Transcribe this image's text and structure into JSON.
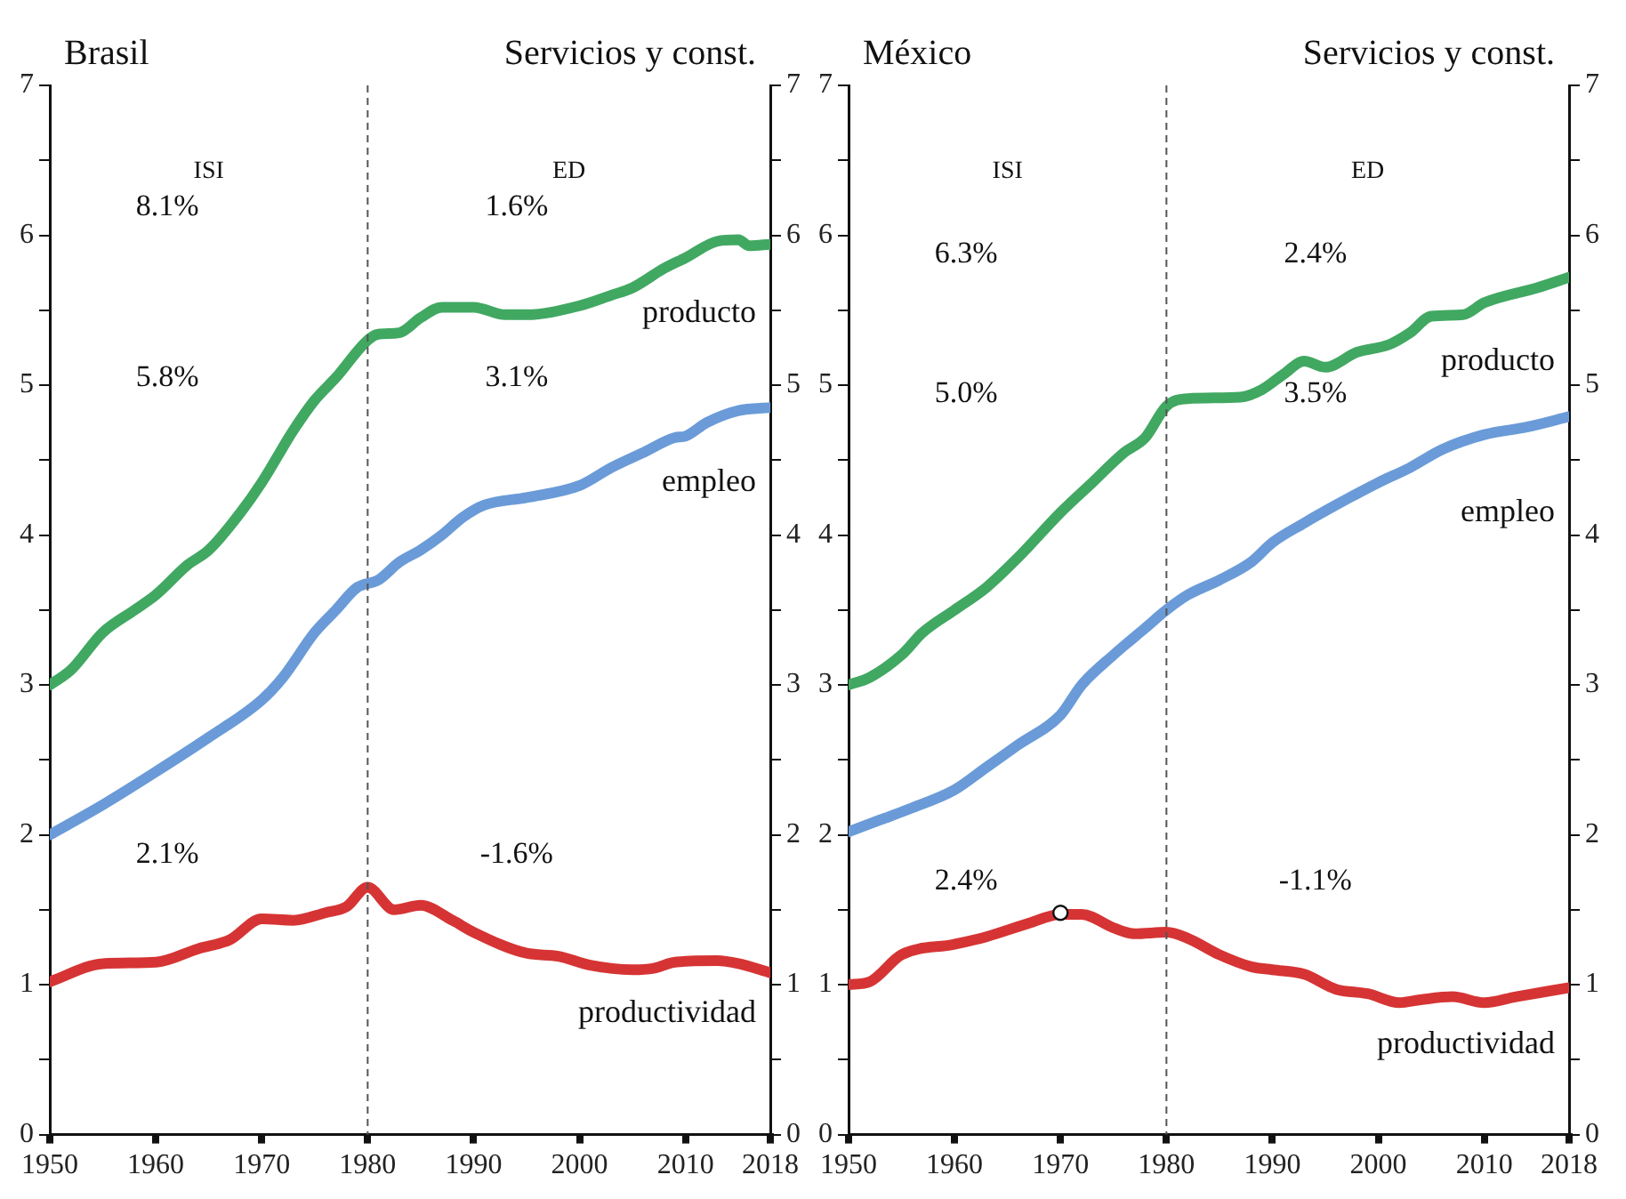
{
  "chart_data": [
    {
      "type": "line",
      "title": "Brasil",
      "subtitle": "Servicios y const.",
      "xlim": [
        1950,
        2018
      ],
      "xticks": [
        1950,
        1960,
        1970,
        1980,
        1990,
        2000,
        2010,
        2018
      ],
      "ylim": [
        0,
        7
      ],
      "yticks": [
        0,
        {
          "value": 0.5,
          "label": null
        },
        1,
        {
          "value": 1.5,
          "label": null
        },
        2,
        {
          "value": 2.5,
          "label": null
        },
        3,
        {
          "value": 3.5,
          "label": null
        },
        4,
        {
          "value": 4.5,
          "label": null
        },
        5,
        {
          "value": 5.5,
          "label": null
        },
        6,
        {
          "value": 6.5,
          "label": null
        },
        7
      ],
      "y2lim": [
        0,
        7
      ],
      "y2ticks": [
        0,
        {
          "value": 0.5,
          "label": null
        },
        1,
        {
          "value": 1.5,
          "label": null
        },
        2,
        {
          "value": 2.5,
          "label": null
        },
        3,
        {
          "value": 3.5,
          "label": null
        },
        4,
        {
          "value": 4.5,
          "label": null
        },
        5,
        {
          "value": 5.5,
          "label": null
        },
        6,
        {
          "value": 6.5,
          "label": null
        },
        7
      ],
      "grid": false,
      "legend": false,
      "marker": "none",
      "line_style": "solid",
      "ref_lines": [
        {
          "axis": "x",
          "value": 1980,
          "line_style": "dashed",
          "color": "#555555"
        }
      ],
      "annotations": [
        "ISI",
        "ED",
        "8.1%",
        "5.8%",
        "2.1%",
        "1.6%",
        "3.1%",
        "-1.6%"
      ],
      "series": [
        {
          "name": "producto",
          "color": "#41a862",
          "x": [
            1950,
            1952,
            1955,
            1958,
            1960,
            1963,
            1965,
            1968,
            1970,
            1973,
            1975,
            1977,
            1980,
            1981,
            1983,
            1985,
            1987,
            1990,
            1993,
            1995,
            2000,
            2003,
            2005,
            2008,
            2010,
            2013,
            2015,
            2016,
            2018
          ],
          "values": [
            3.0,
            3.1,
            3.35,
            3.5,
            3.6,
            3.8,
            3.9,
            4.15,
            4.35,
            4.7,
            4.9,
            5.05,
            5.3,
            5.34,
            5.35,
            5.45,
            5.52,
            5.52,
            5.47,
            5.47,
            5.53,
            5.6,
            5.65,
            5.78,
            5.85,
            5.96,
            5.97,
            5.93,
            5.94
          ]
        },
        {
          "name": "empleo",
          "color": "#6a9bd8",
          "x": [
            1950,
            1955,
            1960,
            1965,
            1970,
            1972,
            1975,
            1977,
            1979,
            1981,
            1983,
            1985,
            1987,
            1989,
            1991,
            1995,
            2000,
            2003,
            2006,
            2009,
            2010,
            2012,
            2015,
            2018
          ],
          "values": [
            2.0,
            2.2,
            2.42,
            2.65,
            2.9,
            3.05,
            3.35,
            3.5,
            3.65,
            3.7,
            3.82,
            3.9,
            4.0,
            4.12,
            4.2,
            4.25,
            4.33,
            4.45,
            4.55,
            4.65,
            4.66,
            4.75,
            4.83,
            4.85
          ]
        },
        {
          "name": "productividad",
          "color": "#d63434",
          "x": [
            1950,
            1955,
            1960,
            1964,
            1967,
            1970,
            1973,
            1976,
            1978,
            1980,
            1982.5,
            1985,
            1988,
            1990,
            1995,
            1998,
            2001,
            2005,
            2007,
            2009,
            2013,
            2015,
            2018
          ],
          "values": [
            1.02,
            1.14,
            1.15,
            1.24,
            1.3,
            1.44,
            1.43,
            1.48,
            1.52,
            1.65,
            1.5,
            1.53,
            1.43,
            1.35,
            1.21,
            1.19,
            1.13,
            1.1,
            1.11,
            1.15,
            1.16,
            1.14,
            1.08
          ]
        }
      ]
    },
    {
      "type": "line",
      "title": "México",
      "subtitle": "Servicios y const.",
      "xlim": [
        1950,
        2018
      ],
      "xticks": [
        1950,
        1960,
        1970,
        1980,
        1990,
        2000,
        2010,
        2018
      ],
      "ylim": [
        0,
        7
      ],
      "yticks": [
        0,
        {
          "value": 0.5,
          "label": null
        },
        1,
        {
          "value": 1.5,
          "label": null
        },
        2,
        {
          "value": 2.5,
          "label": null
        },
        3,
        {
          "value": 3.5,
          "label": null
        },
        4,
        {
          "value": 4.5,
          "label": null
        },
        5,
        {
          "value": 5.5,
          "label": null
        },
        6,
        {
          "value": 6.5,
          "label": null
        },
        7
      ],
      "y2lim": [
        0,
        7
      ],
      "y2ticks": [
        0,
        {
          "value": 0.5,
          "label": null
        },
        1,
        {
          "value": 1.5,
          "label": null
        },
        2,
        {
          "value": 2.5,
          "label": null
        },
        3,
        {
          "value": 3.5,
          "label": null
        },
        4,
        {
          "value": 4.5,
          "label": null
        },
        5,
        {
          "value": 5.5,
          "label": null
        },
        6,
        {
          "value": 6.5,
          "label": null
        },
        7
      ],
      "grid": false,
      "legend": false,
      "marker": "none",
      "line_style": "solid",
      "ref_lines": [
        {
          "axis": "x",
          "value": 1980,
          "line_style": "dashed",
          "color": "#555555"
        }
      ],
      "annotations": [
        "ISI",
        "ED",
        "6.3%",
        "5.0%",
        "2.4%",
        "2.4%",
        "3.5%",
        "-1.1%"
      ],
      "series": [
        {
          "name": "producto",
          "color": "#41a862",
          "x": [
            1950,
            1952,
            1955,
            1957,
            1960,
            1963,
            1966,
            1970,
            1973,
            1976,
            1978,
            1980,
            1982,
            1987,
            1989,
            1991,
            1993,
            1995,
            1998,
            2001,
            2003,
            2005,
            2008,
            2010,
            2015,
            2018
          ],
          "values": [
            3.0,
            3.05,
            3.2,
            3.35,
            3.5,
            3.65,
            3.85,
            4.15,
            4.35,
            4.55,
            4.65,
            4.86,
            4.91,
            4.92,
            4.97,
            5.07,
            5.16,
            5.12,
            5.22,
            5.27,
            5.35,
            5.46,
            5.47,
            5.55,
            5.65,
            5.72
          ]
        },
        {
          "name": "empleo",
          "color": "#6a9bd8",
          "x": [
            1950,
            1953,
            1956,
            1960,
            1963,
            1966,
            1970,
            1972,
            1975,
            1978,
            1980,
            1982,
            1985,
            1988,
            1990,
            1993,
            1996,
            2000,
            2003,
            2006,
            2010,
            2014,
            2018
          ],
          "values": [
            2.02,
            2.1,
            2.18,
            2.3,
            2.45,
            2.6,
            2.8,
            3.0,
            3.2,
            3.38,
            3.5,
            3.6,
            3.7,
            3.82,
            3.95,
            4.08,
            4.2,
            4.35,
            4.45,
            4.57,
            4.67,
            4.72,
            4.79
          ]
        },
        {
          "name": "productividad",
          "color": "#d63434",
          "x": [
            1950,
            1952,
            1955,
            1960,
            1963,
            1967,
            1970,
            1972,
            1975,
            1977,
            1980,
            1982,
            1985,
            1988,
            1990,
            1993,
            1996,
            1999,
            2002,
            2004,
            2007,
            2010,
            2013,
            2018
          ],
          "values": [
            1.0,
            1.02,
            1.2,
            1.27,
            1.32,
            1.41,
            1.47,
            1.47,
            1.38,
            1.34,
            1.35,
            1.31,
            1.2,
            1.12,
            1.1,
            1.07,
            0.97,
            0.94,
            0.88,
            0.9,
            0.92,
            0.88,
            0.92,
            0.98
          ]
        },
        {
          "type": "scatter",
          "color": "#ffffff",
          "marker": "circle",
          "x": [
            1970
          ],
          "values": [
            1.48
          ]
        }
      ]
    }
  ]
}
